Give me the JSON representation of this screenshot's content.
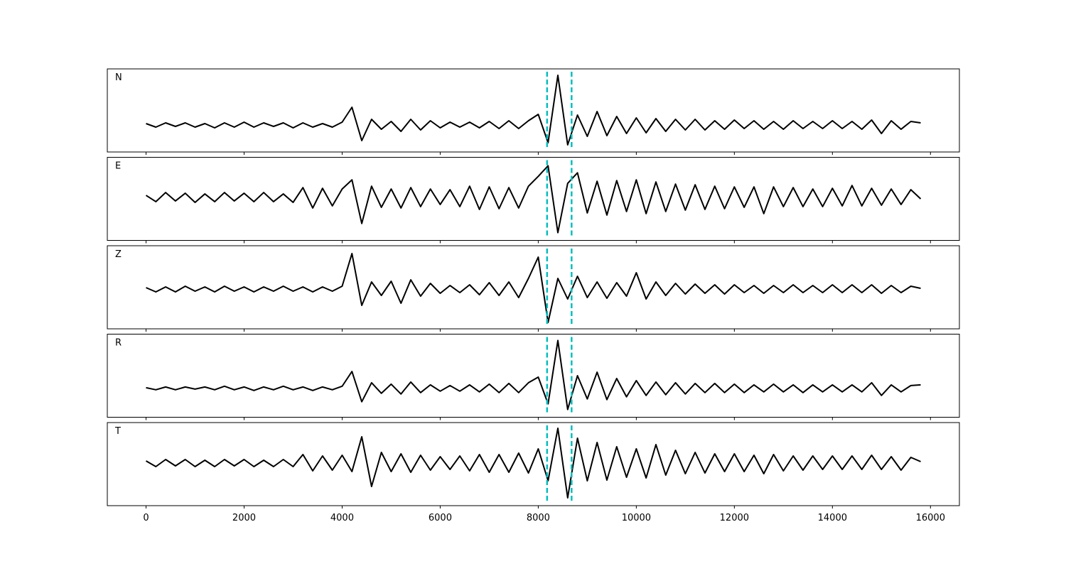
{
  "chart_data": [
    {
      "type": "line",
      "label": "N",
      "color": "#000000",
      "vlines": [
        8180,
        8680
      ],
      "vline_color": "#00bfbf",
      "xlim": [
        -790,
        16590
      ],
      "ylim": [
        -3.8,
        7.9
      ],
      "xticks": [
        0,
        2000,
        4000,
        6000,
        8000,
        10000,
        12000,
        14000,
        16000
      ],
      "x": [
        0,
        200,
        400,
        600,
        800,
        1000,
        1200,
        1400,
        1600,
        1800,
        2000,
        2200,
        2400,
        2600,
        2800,
        3000,
        3200,
        3400,
        3600,
        3800,
        4000,
        4200,
        4400,
        4600,
        4800,
        5000,
        5200,
        5400,
        5600,
        5800,
        6000,
        6200,
        6400,
        6600,
        6800,
        7000,
        7200,
        7400,
        7600,
        7800,
        8000,
        8200,
        8400,
        8600,
        8800,
        9000,
        9200,
        9400,
        9600,
        9800,
        10000,
        10200,
        10400,
        10600,
        10800,
        11000,
        11200,
        11400,
        11600,
        11800,
        12000,
        12200,
        12400,
        12600,
        12800,
        13000,
        13200,
        13400,
        13600,
        13800,
        14000,
        14200,
        14400,
        14600,
        14800,
        15000,
        15200,
        15400,
        15600,
        15800
      ],
      "values": [
        0.2,
        -0.3,
        0.3,
        -0.2,
        0.3,
        -0.3,
        0.2,
        -0.4,
        0.3,
        -0.3,
        0.4,
        -0.3,
        0.3,
        -0.2,
        0.3,
        -0.4,
        0.3,
        -0.3,
        0.2,
        -0.3,
        0.4,
        2.5,
        -2.2,
        0.8,
        -0.6,
        0.5,
        -0.9,
        0.8,
        -0.7,
        0.6,
        -0.4,
        0.4,
        -0.3,
        0.4,
        -0.4,
        0.5,
        -0.5,
        0.6,
        -0.5,
        0.6,
        1.5,
        -2.5,
        7.0,
        -2.8,
        1.4,
        -1.6,
        1.9,
        -1.5,
        1.2,
        -1.2,
        1.0,
        -1.1,
        0.9,
        -0.9,
        0.8,
        -0.7,
        0.8,
        -0.7,
        0.6,
        -0.6,
        0.7,
        -0.5,
        0.6,
        -0.6,
        0.5,
        -0.6,
        0.6,
        -0.5,
        0.5,
        -0.5,
        0.6,
        -0.5,
        0.5,
        -0.6,
        0.7,
        -1.2,
        0.6,
        -0.6,
        0.5,
        0.3
      ]
    },
    {
      "type": "line",
      "label": "E",
      "color": "#000000",
      "vlines": [
        8180,
        8680
      ],
      "vline_color": "#00bfbf",
      "xlim": [
        -790,
        16590
      ],
      "ylim": [
        -6.1,
        5.7
      ],
      "xticks": [
        0,
        2000,
        4000,
        6000,
        8000,
        10000,
        12000,
        14000,
        16000
      ],
      "x": [
        0,
        200,
        400,
        600,
        800,
        1000,
        1200,
        1400,
        1600,
        1800,
        2000,
        2200,
        2400,
        2600,
        2800,
        3000,
        3200,
        3400,
        3600,
        3800,
        4000,
        4200,
        4400,
        4600,
        4800,
        5000,
        5200,
        5400,
        5600,
        5800,
        6000,
        6200,
        6400,
        6600,
        6800,
        7000,
        7200,
        7400,
        7600,
        7800,
        8000,
        8200,
        8400,
        8600,
        8800,
        9000,
        9200,
        9400,
        9600,
        9800,
        10000,
        10200,
        10400,
        10600,
        10800,
        11000,
        11200,
        11400,
        11600,
        11800,
        12000,
        12200,
        12400,
        12600,
        12800,
        13000,
        13200,
        13400,
        13600,
        13800,
        14000,
        14200,
        14400,
        14600,
        14800,
        15000,
        15200,
        15400,
        15600,
        15800
      ],
      "values": [
        0.3,
        -0.6,
        0.7,
        -0.5,
        0.6,
        -0.7,
        0.5,
        -0.6,
        0.7,
        -0.5,
        0.6,
        -0.6,
        0.7,
        -0.6,
        0.5,
        -0.7,
        1.4,
        -1.5,
        1.3,
        -1.2,
        1.2,
        2.5,
        -3.7,
        1.6,
        -1.4,
        1.2,
        -1.5,
        1.4,
        -1.3,
        1.2,
        -1.0,
        1.1,
        -1.3,
        1.6,
        -1.7,
        1.5,
        -1.6,
        1.4,
        -1.5,
        1.6,
        3.0,
        4.5,
        -5.0,
        2.0,
        3.5,
        -2.2,
        2.3,
        -2.5,
        2.4,
        -2.0,
        2.5,
        -2.3,
        2.2,
        -2.0,
        1.9,
        -1.8,
        1.8,
        -1.7,
        1.6,
        -1.6,
        1.5,
        -1.4,
        1.5,
        -2.3,
        1.5,
        -1.3,
        1.4,
        -1.3,
        1.2,
        -1.3,
        1.3,
        -1.2,
        1.7,
        -1.2,
        1.3,
        -1.1,
        1.2,
        -1.0,
        1.1,
        -0.2
      ]
    },
    {
      "type": "line",
      "label": "Z",
      "color": "#000000",
      "vlines": [
        8180,
        8680
      ],
      "vline_color": "#00bfbf",
      "xlim": [
        -790,
        16590
      ],
      "ylim": [
        -5.6,
        6.1
      ],
      "xticks": [
        0,
        2000,
        4000,
        6000,
        8000,
        10000,
        12000,
        14000,
        16000
      ],
      "x": [
        0,
        200,
        400,
        600,
        800,
        1000,
        1200,
        1400,
        1600,
        1800,
        2000,
        2200,
        2400,
        2600,
        2800,
        3000,
        3200,
        3400,
        3600,
        3800,
        4000,
        4200,
        4400,
        4600,
        4800,
        5000,
        5200,
        5400,
        5600,
        5800,
        6000,
        6200,
        6400,
        6600,
        6800,
        7000,
        7200,
        7400,
        7600,
        7800,
        8000,
        8200,
        8400,
        8600,
        8800,
        9000,
        9200,
        9400,
        9600,
        9800,
        10000,
        10200,
        10400,
        10600,
        10800,
        11000,
        11200,
        11400,
        11600,
        11800,
        12000,
        12200,
        12400,
        12600,
        12800,
        13000,
        13200,
        13400,
        13600,
        13800,
        14000,
        14200,
        14400,
        14600,
        14800,
        15000,
        15200,
        15400,
        15600,
        15800
      ],
      "values": [
        0.2,
        -0.4,
        0.3,
        -0.4,
        0.4,
        -0.3,
        0.3,
        -0.4,
        0.4,
        -0.3,
        0.3,
        -0.4,
        0.3,
        -0.3,
        0.4,
        -0.3,
        0.3,
        -0.4,
        0.3,
        -0.3,
        0.4,
        5.0,
        -2.3,
        1.0,
        -0.9,
        1.1,
        -2.0,
        1.3,
        -1.0,
        0.8,
        -0.6,
        0.5,
        -0.5,
        0.6,
        -0.8,
        0.9,
        -0.9,
        1.0,
        -1.2,
        1.5,
        4.5,
        -4.7,
        1.5,
        -1.4,
        1.8,
        -1.2,
        1.0,
        -1.3,
        0.9,
        -1.0,
        2.3,
        -1.4,
        1.0,
        -0.9,
        0.8,
        -0.7,
        0.7,
        -0.6,
        0.6,
        -0.7,
        0.6,
        -0.5,
        0.5,
        -0.6,
        0.5,
        -0.5,
        0.6,
        -0.5,
        0.5,
        -0.5,
        0.6,
        -0.5,
        0.6,
        -0.5,
        0.6,
        -0.6,
        0.5,
        -0.5,
        0.4,
        0.1
      ]
    },
    {
      "type": "line",
      "label": "R",
      "color": "#000000",
      "vlines": [
        8180,
        8680
      ],
      "vline_color": "#00bfbf",
      "xlim": [
        -790,
        16590
      ],
      "ylim": [
        -4.1,
        7.7
      ],
      "xticks": [
        0,
        2000,
        4000,
        6000,
        8000,
        10000,
        12000,
        14000,
        16000
      ],
      "x": [
        0,
        200,
        400,
        600,
        800,
        1000,
        1200,
        1400,
        1600,
        1800,
        2000,
        2200,
        2400,
        2600,
        2800,
        3000,
        3200,
        3400,
        3600,
        3800,
        4000,
        4200,
        4400,
        4600,
        4800,
        5000,
        5200,
        5400,
        5600,
        5800,
        6000,
        6200,
        6400,
        6600,
        6800,
        7000,
        7200,
        7400,
        7600,
        7800,
        8000,
        8200,
        8400,
        8600,
        8800,
        9000,
        9200,
        9400,
        9600,
        9800,
        10000,
        10200,
        10400,
        10600,
        10800,
        11000,
        11200,
        11400,
        11600,
        11800,
        12000,
        12200,
        12400,
        12600,
        12800,
        13000,
        13200,
        13400,
        13600,
        13800,
        14000,
        14200,
        14400,
        14600,
        14800,
        15000,
        15200,
        15400,
        15600,
        15800
      ],
      "values": [
        0.1,
        -0.2,
        0.2,
        -0.2,
        0.2,
        -0.1,
        0.2,
        -0.2,
        0.3,
        -0.2,
        0.2,
        -0.3,
        0.2,
        -0.2,
        0.3,
        -0.2,
        0.2,
        -0.3,
        0.2,
        -0.2,
        0.3,
        2.4,
        -1.9,
        0.8,
        -0.7,
        0.6,
        -0.8,
        0.9,
        -0.6,
        0.5,
        -0.4,
        0.4,
        -0.4,
        0.5,
        -0.5,
        0.6,
        -0.6,
        0.7,
        -0.6,
        0.8,
        1.6,
        -2.2,
        6.8,
        -3.0,
        1.8,
        -1.5,
        2.3,
        -1.6,
        1.4,
        -1.2,
        1.1,
        -1.0,
        0.9,
        -0.9,
        0.8,
        -0.8,
        0.7,
        -0.6,
        0.7,
        -0.6,
        0.6,
        -0.6,
        0.5,
        -0.5,
        0.6,
        -0.5,
        0.5,
        -0.6,
        0.5,
        -0.5,
        0.5,
        -0.5,
        0.5,
        -0.5,
        0.8,
        -1.0,
        0.5,
        -0.5,
        0.4,
        0.5
      ]
    },
    {
      "type": "line",
      "label": "T",
      "color": "#000000",
      "vlines": [
        8180,
        8680
      ],
      "vline_color": "#00bfbf",
      "xlim": [
        -790,
        16590
      ],
      "ylim": [
        -6.0,
        5.7
      ],
      "xticks": [
        0,
        2000,
        4000,
        6000,
        8000,
        10000,
        12000,
        14000,
        16000
      ],
      "x": [
        0,
        200,
        400,
        600,
        800,
        1000,
        1200,
        1400,
        1600,
        1800,
        2000,
        2200,
        2400,
        2600,
        2800,
        3000,
        3200,
        3400,
        3600,
        3800,
        4000,
        4200,
        4400,
        4600,
        4800,
        5000,
        5200,
        5400,
        5600,
        5800,
        6000,
        6200,
        6400,
        6600,
        6800,
        7000,
        7200,
        7400,
        7600,
        7800,
        8000,
        8200,
        8400,
        8600,
        8800,
        9000,
        9200,
        9400,
        9600,
        9800,
        10000,
        10200,
        10400,
        10600,
        10800,
        11000,
        11200,
        11400,
        11600,
        11800,
        12000,
        12200,
        12400,
        12600,
        12800,
        13000,
        13200,
        13400,
        13600,
        13800,
        14000,
        14200,
        14400,
        14600,
        14800,
        15000,
        15200,
        15400,
        15600,
        15800
      ],
      "values": [
        0.3,
        -0.5,
        0.5,
        -0.4,
        0.5,
        -0.5,
        0.4,
        -0.5,
        0.5,
        -0.4,
        0.5,
        -0.5,
        0.4,
        -0.5,
        0.5,
        -0.5,
        1.2,
        -1.1,
        1.0,
        -1.0,
        1.1,
        -1.2,
        3.7,
        -3.3,
        1.5,
        -1.2,
        1.3,
        -1.3,
        1.1,
        -1.0,
        0.9,
        -0.9,
        1.0,
        -1.1,
        1.2,
        -1.3,
        1.2,
        -1.3,
        1.4,
        -1.4,
        2.0,
        -2.5,
        4.9,
        -4.9,
        3.5,
        -2.5,
        2.9,
        -2.4,
        2.3,
        -2.0,
        2.0,
        -2.1,
        2.6,
        -1.7,
        1.8,
        -1.5,
        1.5,
        -1.4,
        1.3,
        -1.2,
        1.3,
        -1.2,
        1.1,
        -1.5,
        1.2,
        -1.1,
        1.0,
        -1.0,
        1.0,
        -0.9,
        1.0,
        -0.9,
        1.0,
        -0.9,
        1.1,
        -0.9,
        0.9,
        -1.0,
        0.8,
        0.2
      ]
    }
  ]
}
